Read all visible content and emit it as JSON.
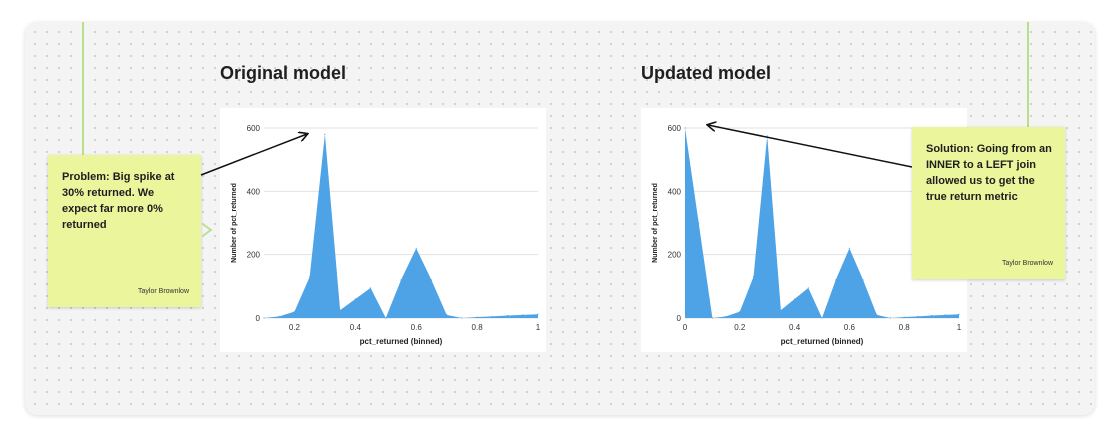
{
  "board": {
    "left_title": "Original model",
    "right_title": "Updated model"
  },
  "stickies": {
    "problem": {
      "text": "Problem: Big spike at 30% returned. We expect far more 0% returned",
      "author": "Taylor Brownlow"
    },
    "solution": {
      "text": "Solution: Going from an INNER to a LEFT join allowed us to get the true return metric",
      "author": "Taylor Brownlow"
    }
  },
  "colors": {
    "area_fill": "#4ea3e6",
    "sticky_bg": "#eaf59c",
    "guide_line": "#b8e08a",
    "arrow": "#111111"
  },
  "icons": {
    "connector": "chevron-right-icon"
  },
  "chart_data": [
    {
      "type": "area",
      "title": "Original model",
      "xlabel": "pct_returned (binned)",
      "ylabel": "Number of pct_returned",
      "x": [
        0.1,
        0.15,
        0.2,
        0.25,
        0.3,
        0.35,
        0.4,
        0.45,
        0.5,
        0.55,
        0.6,
        0.65,
        0.7,
        0.75,
        0.8,
        0.85,
        0.9,
        0.95,
        1.0
      ],
      "y": [
        0,
        5,
        20,
        130,
        580,
        25,
        60,
        95,
        0,
        120,
        220,
        120,
        10,
        0,
        3,
        5,
        8,
        10,
        12
      ],
      "xlim": [
        0.1,
        1.0
      ],
      "ylim": [
        0,
        600
      ],
      "xticks": [
        "0.2",
        "0.4",
        "0.6",
        "0.8",
        "1"
      ],
      "xtick_values": [
        0.2,
        0.4,
        0.6,
        0.8,
        1.0
      ],
      "yticks": [
        "0",
        "200",
        "400",
        "600"
      ],
      "ytick_values": [
        0,
        200,
        400,
        600
      ],
      "grid": true
    },
    {
      "type": "area",
      "title": "Updated model",
      "xlabel": "pct_returned (binned)",
      "ylabel": "Number of pct_returned",
      "x": [
        0.0,
        0.05,
        0.1,
        0.15,
        0.2,
        0.25,
        0.3,
        0.35,
        0.4,
        0.45,
        0.5,
        0.55,
        0.6,
        0.65,
        0.7,
        0.75,
        0.8,
        0.85,
        0.9,
        0.95,
        1.0
      ],
      "y": [
        600,
        300,
        0,
        5,
        20,
        130,
        575,
        25,
        60,
        95,
        0,
        120,
        220,
        120,
        10,
        0,
        3,
        5,
        8,
        10,
        12
      ],
      "xlim": [
        0.0,
        1.0
      ],
      "ylim": [
        0,
        600
      ],
      "xticks": [
        "0",
        "0.2",
        "0.4",
        "0.6",
        "0.8",
        "1"
      ],
      "xtick_values": [
        0,
        0.2,
        0.4,
        0.6,
        0.8,
        1.0
      ],
      "yticks": [
        "0",
        "200",
        "400",
        "600"
      ],
      "ytick_values": [
        0,
        200,
        400,
        600
      ],
      "grid": true
    }
  ]
}
